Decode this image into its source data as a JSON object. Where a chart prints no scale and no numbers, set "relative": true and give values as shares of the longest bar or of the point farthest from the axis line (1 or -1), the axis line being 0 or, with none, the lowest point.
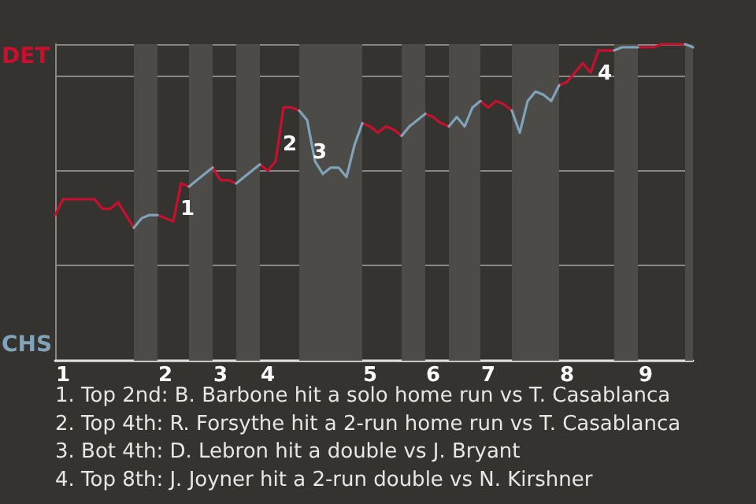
{
  "chart_data": {
    "type": "line",
    "relative": true,
    "grid": "y",
    "marker": "none",
    "tick_labels": "x",
    "categories": [
      null,
      "1",
      null,
      null,
      null,
      null,
      null,
      null,
      null,
      null,
      null,
      null,
      null,
      null,
      "2",
      null,
      null,
      null,
      null,
      null,
      null,
      "3",
      null,
      null,
      null,
      null,
      null,
      "4",
      null,
      null,
      null,
      null,
      null,
      null,
      null,
      null,
      null,
      null,
      null,
      null,
      "5",
      null,
      null,
      null,
      null,
      null,
      null,
      null,
      "6",
      null,
      null,
      null,
      null,
      null,
      null,
      "7",
      null,
      null,
      null,
      null,
      null,
      null,
      null,
      null,
      null,
      "8",
      null,
      null,
      null,
      null,
      null,
      null,
      null,
      null,
      null,
      "9",
      null,
      null,
      null,
      null,
      null,
      null
    ],
    "series": [
      {
        "color": "#c8102e",
        "values": [
          0.46,
          0.51,
          0.51,
          0.51,
          0.51,
          0.51,
          0.48,
          0.48,
          0.5,
          0.46,
          0.42,
          null,
          null,
          0.46,
          0.45,
          0.44,
          0.56,
          0.55,
          null,
          null,
          0.61,
          0.57,
          0.57,
          0.56,
          null,
          null,
          0.62,
          0.6,
          0.63,
          0.8,
          0.8,
          0.79,
          null,
          null,
          null,
          null,
          null,
          null,
          null,
          0.75,
          0.74,
          0.72,
          0.74,
          0.73,
          0.71,
          null,
          null,
          0.78,
          0.77,
          0.75,
          0.74,
          null,
          null,
          null,
          0.82,
          0.8,
          0.82,
          0.81,
          0.79,
          null,
          null,
          null,
          null,
          null,
          0.87,
          0.88,
          0.91,
          0.94,
          0.91,
          0.98,
          0.98,
          0.98,
          null,
          null,
          0.99,
          0.99,
          0.99,
          1.0,
          1.0,
          1.0,
          1.0,
          null
        ]
      },
      {
        "color": "#7fa3b8",
        "values": [
          null,
          null,
          null,
          null,
          null,
          null,
          null,
          null,
          null,
          null,
          0.42,
          0.45,
          0.46,
          0.46,
          null,
          null,
          null,
          0.55,
          0.57,
          0.59,
          0.61,
          null,
          null,
          0.56,
          0.58,
          0.6,
          0.62,
          null,
          null,
          null,
          null,
          0.79,
          0.76,
          0.63,
          0.59,
          0.61,
          0.61,
          0.58,
          0.68,
          0.75,
          null,
          null,
          null,
          null,
          0.71,
          0.74,
          0.76,
          0.78,
          null,
          null,
          0.74,
          0.77,
          0.74,
          0.8,
          0.82,
          null,
          null,
          null,
          0.79,
          0.72,
          0.82,
          0.85,
          0.84,
          0.82,
          0.87,
          null,
          null,
          null,
          null,
          null,
          null,
          0.98,
          0.99,
          0.99,
          0.99,
          null,
          null,
          null,
          null,
          null,
          1.0,
          0.99
        ]
      }
    ],
    "annotations": [
      "DET",
      "CHS",
      "1",
      "2",
      "3",
      "4",
      "1. Top 2nd: B. Barbone hit a solo home run vs T. Casablanca",
      "2. Top 4th: R. Forsythe hit a 2-run home run vs T. Casablanca",
      "3. Bot 4th: D. Lebron hit a double vs J. Bryant",
      "4. Top 8th: J. Joyner hit a 2-run double vs N. Kirshner"
    ]
  }
}
